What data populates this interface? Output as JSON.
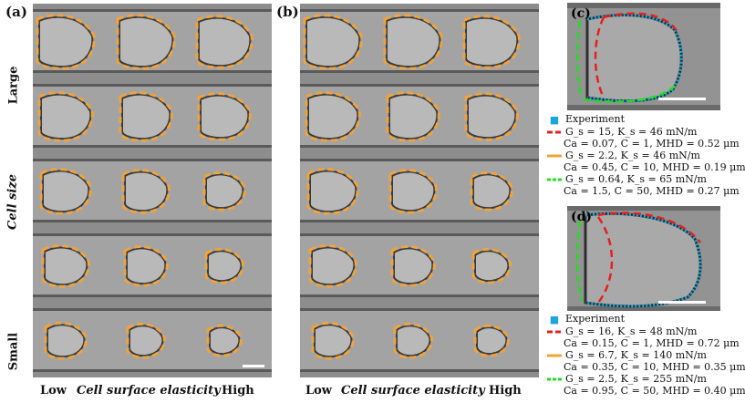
{
  "panels": {
    "a": {
      "label": "(a)"
    },
    "b": {
      "label": "(b)"
    },
    "c": {
      "label": "(c)"
    },
    "d": {
      "label": "(d)"
    }
  },
  "axes": {
    "y_title": "Cell size",
    "y_top": "Large",
    "y_bottom": "Small",
    "x_title": "Cell surface elasticity",
    "x_low": "Low",
    "x_high": "High"
  },
  "legend_c": {
    "experiment": "Experiment",
    "fit1": "G_s = 15, K_s = 46 mN/m",
    "fit1_params": "Ca = 0.07, C = 1, MHD = 0.52 μm",
    "fit2": "G_s = 2.2, K_s = 46 mN/m",
    "fit2_params": "Ca = 0.45, C = 10, MHD = 0.19 μm",
    "fit3": "G_s = 0.64, K_s = 65 mN/m",
    "fit3_params": "Ca = 1.5, C = 50, MHD = 0.27 μm"
  },
  "legend_d": {
    "experiment": "Experiment",
    "fit1": "G_s = 16, K_s = 48 mN/m",
    "fit1_params": "Ca = 0.15, C = 1, MHD = 0.72 μm",
    "fit2": "G_s = 6.7, K_s = 140 mN/m",
    "fit2_params": "Ca = 0.35, C = 10, MHD = 0.35 μm",
    "fit3": "G_s = 2.5, K_s = 255 mN/m",
    "fit3_params": "Ca = 0.95, C = 50, MHD = 0.40 μm"
  },
  "colors": {
    "orange": "#f2a33a",
    "red": "#e52020",
    "green": "#22dd22",
    "experiment": "#1aa6d8",
    "channel": "#9a9a9a",
    "wall": "#5a5a5a"
  }
}
